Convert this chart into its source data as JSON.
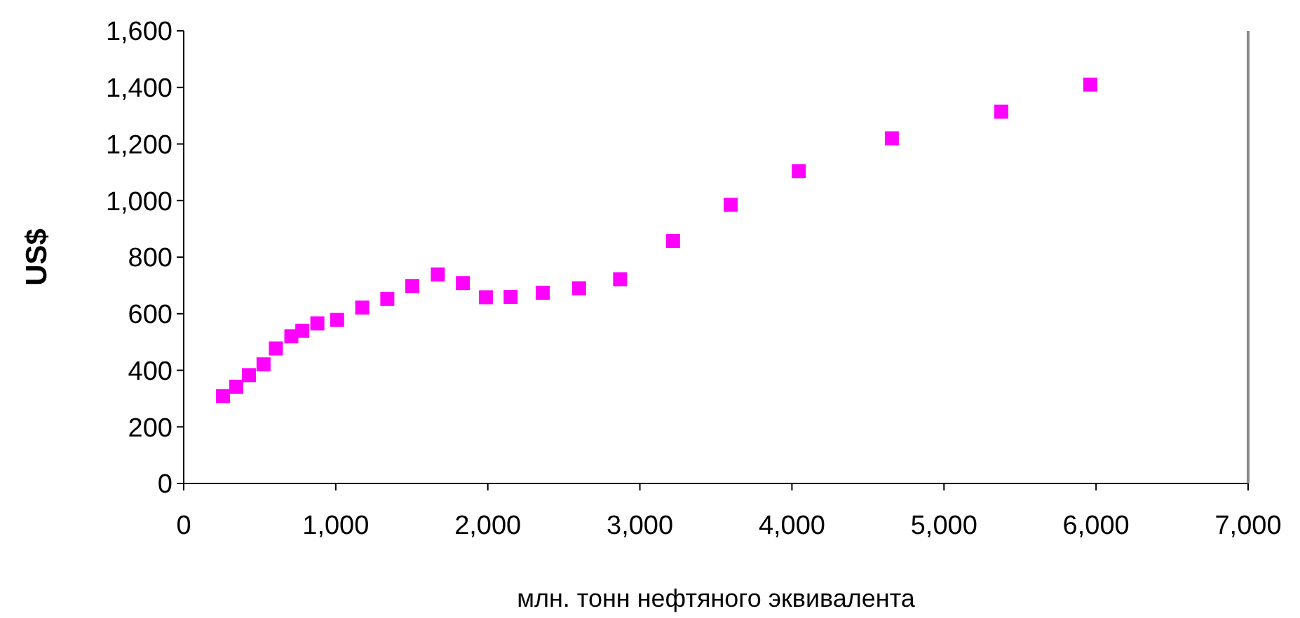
{
  "chart_data": {
    "type": "scatter",
    "xlabel": "млн. тонн нефтяного эквивалента",
    "ylabel": "US$",
    "x": [
      258,
      345,
      429,
      525,
      606,
      708,
      780,
      879,
      1009,
      1174,
      1339,
      1503,
      1671,
      1836,
      1988,
      2150,
      2361,
      2600,
      2870,
      3218,
      3597,
      4045,
      4657,
      5377,
      5962
    ],
    "values": [
      309,
      342,
      383,
      421,
      477,
      520,
      540,
      566,
      578,
      622,
      652,
      698,
      739,
      708,
      658,
      659,
      674,
      690,
      722,
      857,
      985,
      1104,
      1220,
      1314,
      1410
    ],
    "color": "#ff00ff",
    "marker": "square",
    "xlim": [
      0,
      7000
    ],
    "xticks": [
      {
        "value": 0,
        "label": "0"
      },
      {
        "value": 1000,
        "label": "1,000"
      },
      {
        "value": 2000,
        "label": "2,000"
      },
      {
        "value": 3000,
        "label": "3,000"
      },
      {
        "value": 4000,
        "label": "4,000"
      },
      {
        "value": 5000,
        "label": "5,000"
      },
      {
        "value": 6000,
        "label": "6,000"
      },
      {
        "value": 7000,
        "label": "7,000"
      }
    ],
    "ylim": [
      0,
      1600
    ],
    "yticks": [
      {
        "value": 0,
        "label": "0"
      },
      {
        "value": 200,
        "label": "200"
      },
      {
        "value": 400,
        "label": "400"
      },
      {
        "value": 600,
        "label": "600"
      },
      {
        "value": 800,
        "label": "800"
      },
      {
        "value": 1000,
        "label": "1,000"
      },
      {
        "value": 1200,
        "label": "1,200"
      },
      {
        "value": 1400,
        "label": "1,400"
      },
      {
        "value": 1600,
        "label": "1,600"
      }
    ],
    "grid": false
  }
}
